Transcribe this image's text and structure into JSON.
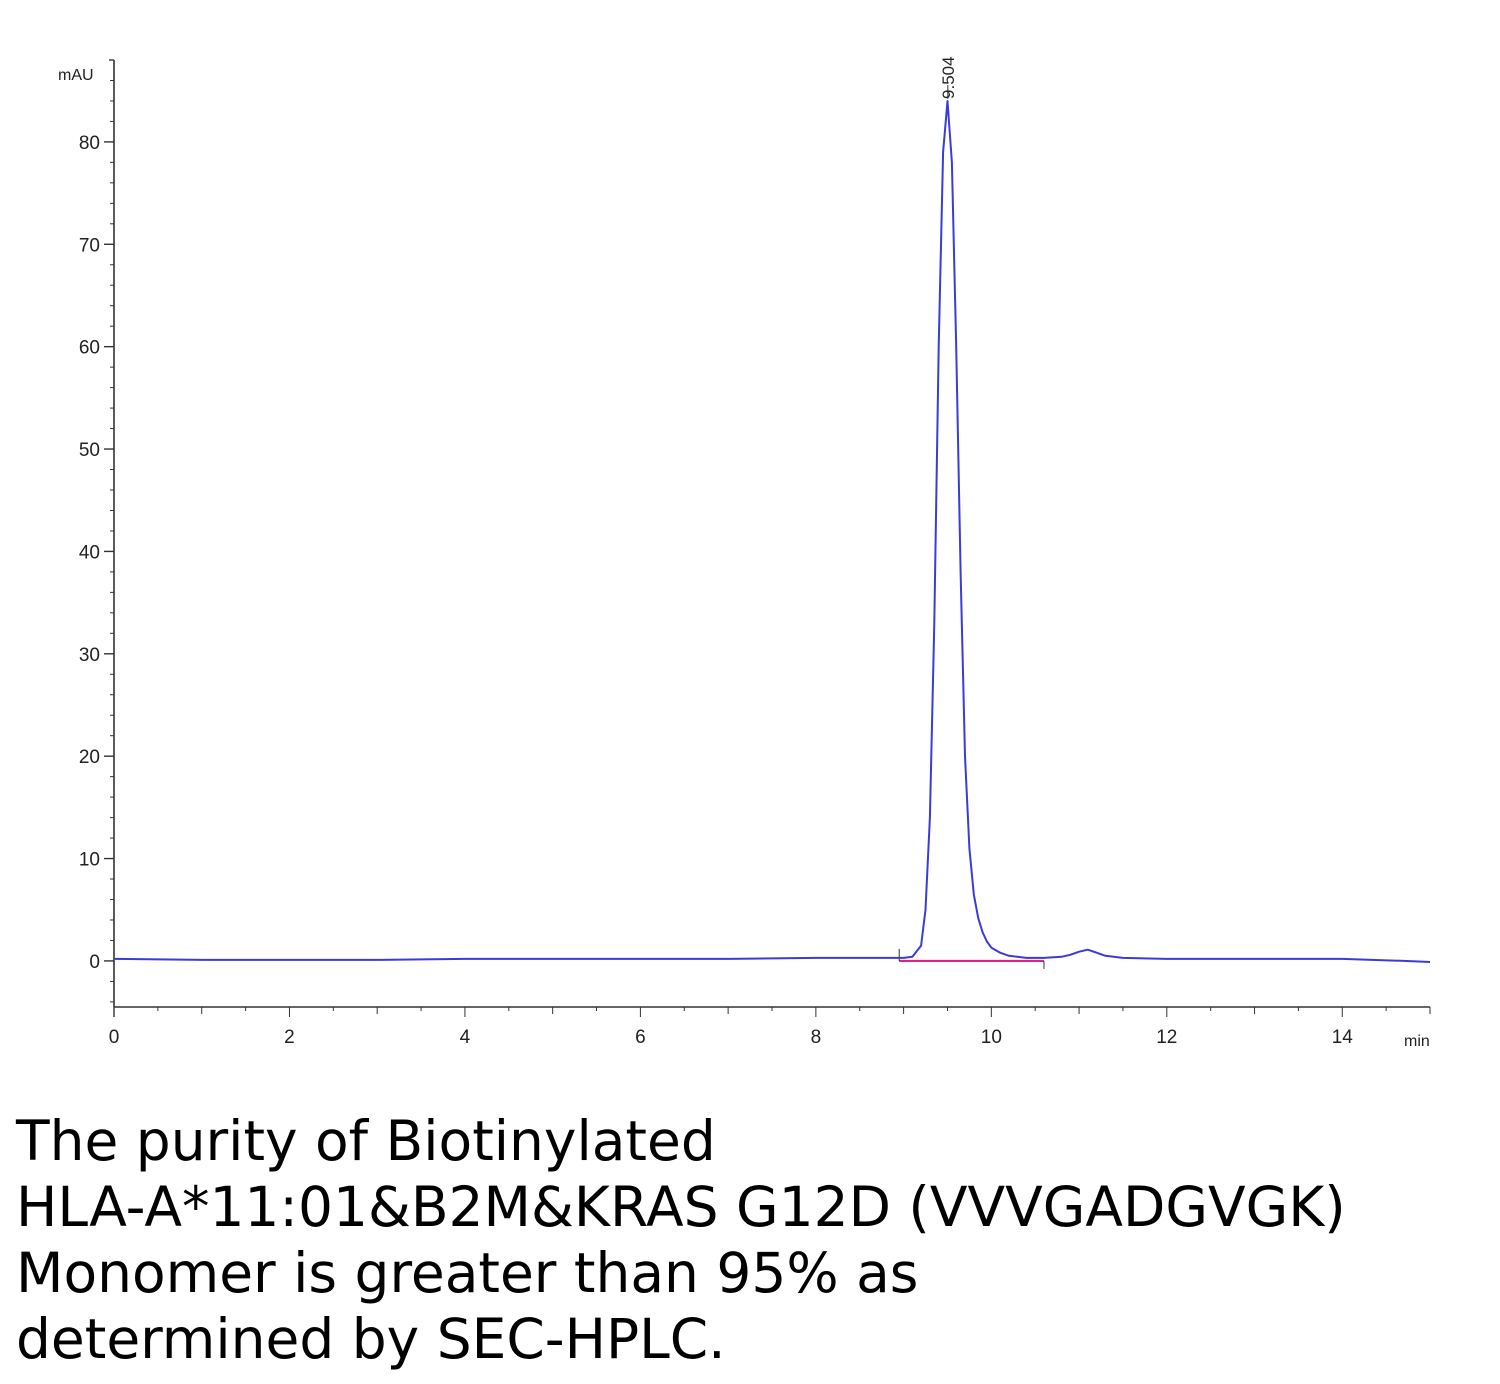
{
  "chart_data": {
    "type": "line",
    "title": "",
    "xlabel": "min",
    "ylabel": "mAU",
    "xlim": [
      0,
      15
    ],
    "ylim": [
      -4.5,
      88
    ],
    "x_ticks": [
      0,
      2,
      4,
      6,
      8,
      10,
      12,
      14
    ],
    "y_ticks": [
      0,
      10,
      20,
      30,
      40,
      50,
      60,
      70,
      80
    ],
    "grid": false,
    "legend": "none",
    "series": [
      {
        "color": "#3b3bd9",
        "x": [
          0,
          1,
          2,
          3,
          4,
          5,
          6,
          7,
          8,
          8.8,
          9.0,
          9.1,
          9.2,
          9.25,
          9.3,
          9.35,
          9.4,
          9.45,
          9.5,
          9.55,
          9.6,
          9.65,
          9.7,
          9.75,
          9.8,
          9.85,
          9.9,
          9.95,
          10.0,
          10.1,
          10.2,
          10.4,
          10.6,
          10.8,
          10.9,
          11.0,
          11.1,
          11.2,
          11.3,
          11.5,
          12,
          13,
          14,
          14.7,
          15
        ],
        "y": [
          0.2,
          0.1,
          0.1,
          0.1,
          0.2,
          0.2,
          0.2,
          0.2,
          0.3,
          0.3,
          0.3,
          0.4,
          1.5,
          5,
          14,
          33,
          60,
          79,
          84,
          78,
          60,
          38,
          20,
          11,
          6.5,
          4.2,
          2.8,
          1.9,
          1.3,
          0.8,
          0.5,
          0.3,
          0.3,
          0.4,
          0.6,
          0.9,
          1.1,
          0.8,
          0.5,
          0.3,
          0.2,
          0.2,
          0.2,
          0.0,
          -0.1
        ]
      }
    ],
    "baseline": {
      "color": "#e0208a",
      "x": [
        8.95,
        10.6
      ],
      "y": [
        0,
        0
      ]
    },
    "peaks": [
      {
        "x": 9.504,
        "y": 84,
        "label": "9.504"
      }
    ]
  },
  "caption": {
    "lines": [
      "The purity of Biotinylated",
      "HLA-A*11:01&B2M&KRAS G12D (VVVGADGVGK)",
      "Monomer is greater than 95% as",
      "determined by SEC-HPLC."
    ]
  },
  "colors": {
    "trace": "#3b3bd9",
    "baseline": "#e0208a",
    "axis": "#333333"
  }
}
